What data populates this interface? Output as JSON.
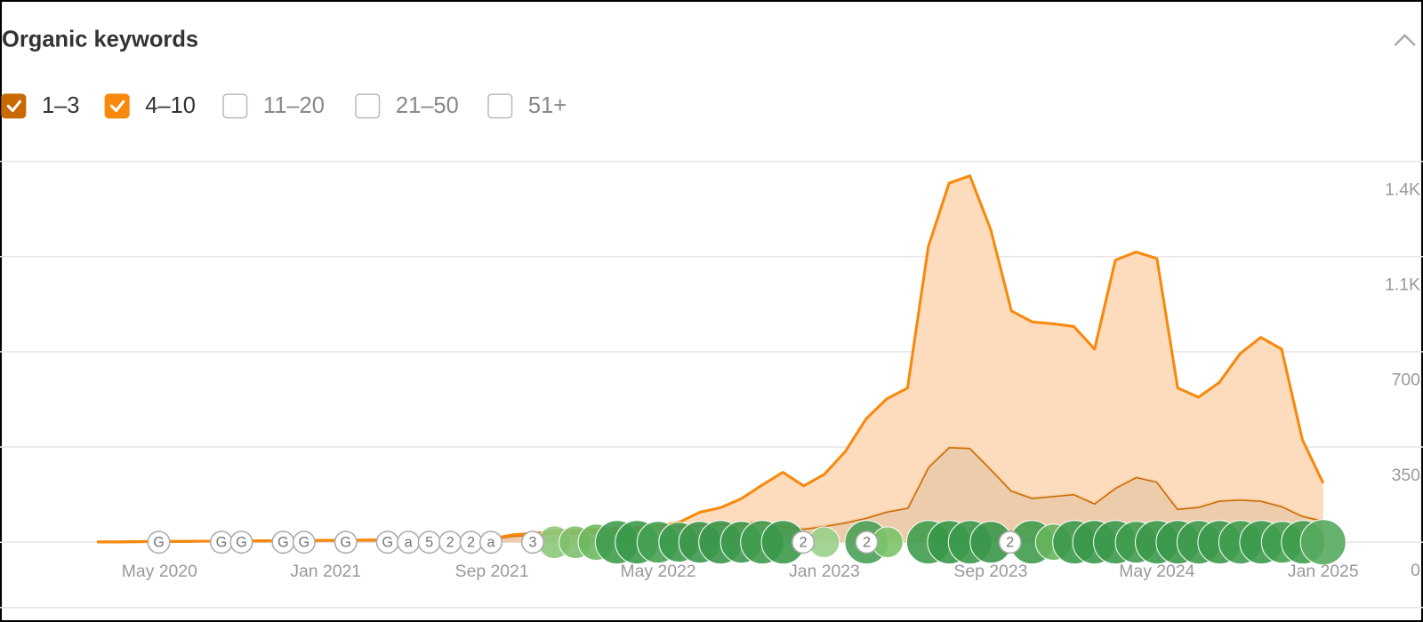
{
  "title": "Organic keywords",
  "unchecked_filters": [
    "11–20",
    "21–50",
    "51+"
  ],
  "update_markers": [
    "G",
    "G",
    "G",
    "G",
    "G",
    "G",
    "G",
    "a",
    "5",
    "2",
    "2",
    "a",
    "3",
    "2",
    "2",
    "2"
  ],
  "chart_data": {
    "type": "stacked-area",
    "categories": [
      null,
      null,
      null,
      "May 2020",
      null,
      null,
      null,
      null,
      null,
      null,
      null,
      "Jan 2021",
      null,
      null,
      null,
      null,
      null,
      null,
      null,
      "Sep 2021",
      null,
      null,
      null,
      null,
      null,
      null,
      null,
      "May 2022",
      null,
      null,
      null,
      null,
      null,
      null,
      null,
      "Jan 2023",
      null,
      null,
      null,
      null,
      null,
      null,
      null,
      "Sep 2023",
      null,
      null,
      null,
      null,
      null,
      null,
      null,
      "May 2024",
      null,
      null,
      null,
      null,
      null,
      null,
      null,
      "Jan 2025"
    ],
    "series": [
      {
        "name": "1–3",
        "color": "#c96a00",
        "fill": "#ebc7a2",
        "values": [
          1,
          1,
          2,
          3,
          3,
          4,
          4,
          5,
          5,
          6,
          6,
          7,
          7,
          8,
          8,
          9,
          9,
          10,
          10,
          12,
          24,
          28,
          33,
          35,
          38,
          40,
          43,
          53,
          60,
          63,
          67,
          70,
          77,
          60,
          50,
          60,
          73,
          90,
          113,
          127,
          277,
          350,
          347,
          270,
          190,
          163,
          170,
          177,
          143,
          200,
          240,
          223,
          123,
          130,
          153,
          157,
          153,
          133,
          97,
          80
        ]
      },
      {
        "name": "4–10",
        "color": "#f7890c",
        "fill": "#fcd8b6",
        "values": [
          0,
          0,
          0,
          0,
          0,
          0,
          0,
          0,
          0,
          0,
          0,
          0,
          0,
          0,
          0,
          0,
          0,
          0,
          0,
          1,
          3,
          5,
          7,
          8,
          9,
          10,
          10,
          7,
          13,
          47,
          60,
          90,
          133,
          197,
          157,
          190,
          260,
          363,
          414,
          440,
          810,
          970,
          1000,
          880,
          660,
          647,
          633,
          616,
          567,
          837,
          827,
          820,
          444,
          403,
          434,
          536,
          600,
          577,
          280,
          137
        ]
      }
    ],
    "ylim": [
      0,
      1400
    ],
    "yticks": [
      0,
      350,
      700,
      {
        "value": 1050,
        "label": "1.1K"
      },
      {
        "value": 1400,
        "label": "1.4K"
      }
    ],
    "grid": true
  }
}
